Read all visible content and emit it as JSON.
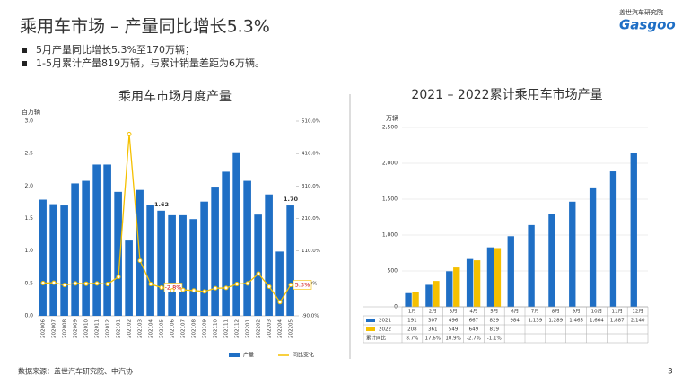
{
  "header": {
    "title": "乘用车市场 – 产量同比增长5.3%",
    "bullets": [
      "5月产量同比增长5.3%至170万辆；",
      "1-5月累计产量819万辆，与累计销量差距为6万辆。"
    ],
    "logo_cn": "盖世汽车研究院",
    "logo_en": "Gasgoo"
  },
  "footer": {
    "source": "数据来源：盖世汽车研究院、中汽协",
    "page": "3"
  },
  "chart_data": [
    {
      "type": "bar",
      "title": "乘用车市场月度产量",
      "y_label": "百万辆",
      "categories": [
        "202006",
        "202007",
        "202008",
        "202009",
        "202010",
        "202011",
        "202012",
        "202101",
        "202102",
        "202103",
        "202104",
        "202105",
        "202106",
        "202107",
        "202108",
        "202109",
        "202110",
        "202111",
        "202112",
        "202201",
        "202202",
        "202203",
        "202204",
        "202205"
      ],
      "series": [
        {
          "name": "产量",
          "color": "#1f6fc5",
          "values": [
            1.79,
            1.72,
            1.7,
            2.04,
            2.08,
            2.33,
            2.33,
            1.91,
            1.16,
            1.94,
            1.71,
            1.62,
            1.55,
            1.55,
            1.49,
            1.76,
            1.99,
            2.22,
            2.52,
            2.08,
            1.56,
            1.87,
            0.99,
            1.7
          ],
          "value_labels": [
            null,
            null,
            null,
            null,
            null,
            null,
            null,
            null,
            null,
            null,
            null,
            "1.62",
            null,
            null,
            null,
            null,
            null,
            null,
            null,
            null,
            null,
            null,
            null,
            "1.70"
          ]
        },
        {
          "name": "同比变化",
          "type": "line",
          "axis": "y2",
          "color": "#f5c000",
          "values": [
            11,
            12,
            5,
            10,
            9,
            10,
            8,
            30,
            470,
            80,
            8,
            -2.8,
            -12,
            -10,
            -12,
            -15,
            -5,
            -4,
            8,
            10,
            40,
            0,
            -48,
            5.3
          ],
          "value_labels": [
            null,
            null,
            null,
            null,
            null,
            null,
            null,
            null,
            null,
            null,
            null,
            "-2.8%",
            null,
            null,
            null,
            null,
            null,
            null,
            null,
            null,
            null,
            null,
            null,
            "5.3%"
          ]
        }
      ],
      "ylim": [
        0,
        3
      ],
      "yticks": [
        {
          "value": 0,
          "label": "0.0"
        },
        0.5,
        {
          "value": 1,
          "label": "1.0"
        },
        1.5,
        {
          "value": 2,
          "label": "2.0"
        },
        2.5,
        {
          "value": 3,
          "label": "3.0"
        }
      ],
      "y2lim": [
        -90,
        510
      ],
      "y2ticks": [
        {
          "value": -90,
          "label": "-90.0%"
        },
        {
          "value": 10,
          "label": "10.0%"
        },
        {
          "value": 110,
          "label": "110.0%"
        },
        {
          "value": 210,
          "label": "210.0%"
        },
        {
          "value": 310,
          "label": "310.0%"
        },
        {
          "value": 410,
          "label": "410.0%"
        },
        {
          "value": 510,
          "label": "510.0%"
        }
      ]
    },
    {
      "type": "bar",
      "title": "2021 – 2022累计乘用车市场产量",
      "y_label": "万辆",
      "categories": [
        "1月",
        "2月",
        "3月",
        "4月",
        "5月",
        "6月",
        "7月",
        "8月",
        "9月",
        "10月",
        "11月",
        "12月"
      ],
      "series": [
        {
          "name": "2021",
          "color": "#1f6fc5",
          "values": [
            191,
            307,
            496,
            667,
            829,
            984,
            1139,
            1289,
            1465,
            1664,
            1887,
            2140
          ],
          "value_labels": [
            "191",
            "307",
            "496",
            "667",
            "829",
            "984",
            "1,139",
            "1,289",
            "1,465",
            "1,664",
            "1,887",
            "2,140"
          ]
        },
        {
          "name": "2022",
          "color": "#f5c000",
          "values": [
            208,
            361,
            549,
            649,
            819,
            null,
            null,
            null,
            null,
            null,
            null,
            null
          ],
          "value_labels": [
            "208",
            "361",
            "549",
            "649",
            "819",
            null,
            null,
            null,
            null,
            null,
            null,
            null
          ]
        }
      ],
      "cumulative_growth": {
        "name": "累计同比",
        "values": [
          8.7,
          17.6,
          10.9,
          -2.7,
          -1.1,
          null,
          null,
          null,
          null,
          null,
          null,
          null
        ],
        "value_labels": [
          "8.7%",
          "17.6%",
          "10.9%",
          "-2.7%",
          "-1.1%",
          null,
          null,
          null,
          null,
          null,
          null,
          null
        ]
      },
      "ylim": [
        0,
        2500
      ],
      "yticks": [
        0,
        500,
        {
          "value": 1000,
          "label": "1,000"
        },
        {
          "value": 1500,
          "label": "1,500"
        },
        {
          "value": 2000,
          "label": "2,000"
        },
        {
          "value": 2500,
          "label": "2,500"
        }
      ],
      "grid": true
    }
  ]
}
